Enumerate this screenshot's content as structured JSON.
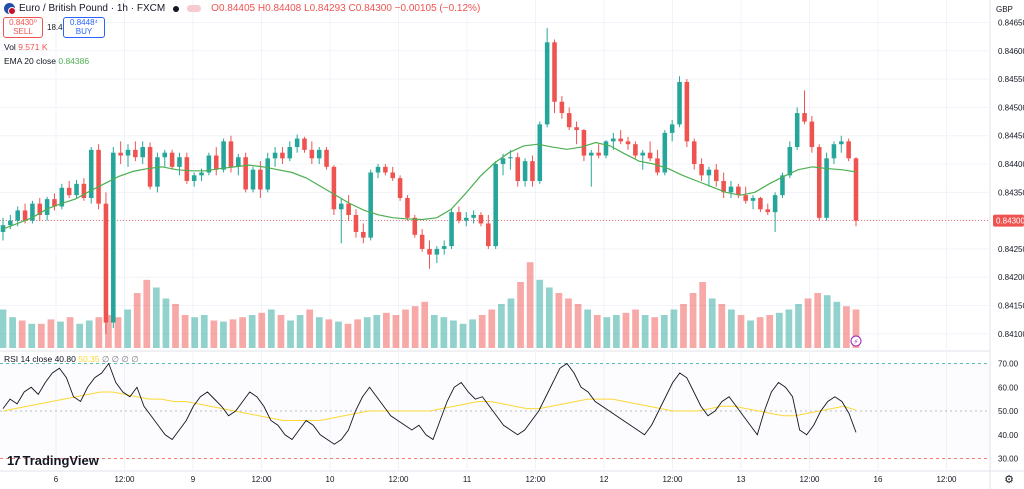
{
  "header": {
    "symbol": "Euro / British Pound · 1h · FXCM",
    "ohlc": "O0.84405 H0.84408 L0.84293 C0.84300 −0.00105 (−0.12%)"
  },
  "trade": {
    "sell_price": "0.8430⁰",
    "sell_label": "SELL",
    "spread": "18.4",
    "buy_price": "0.8448⁴",
    "buy_label": "BUY"
  },
  "indicators": {
    "vol_label": "Vol",
    "vol_value": "9.571 K",
    "ema_label": "EMA 20 close",
    "ema_value": "0.84386",
    "rsi_label": "RSI 14 close",
    "rsi_value": "40.80",
    "rsi_ma_value": "50.35",
    "rsi_zeros": "∅ ∅ ∅ ∅"
  },
  "currency": "GBP",
  "brand": {
    "logo": "17",
    "name": "TradingView"
  },
  "settings_icon": "gear-icon",
  "colors": {
    "up": "#26a69a",
    "down": "#ef5350",
    "ema": "#4caf50",
    "rsi": "#131722",
    "rsi_ma": "#fdd835",
    "last_price": "#ef5350"
  },
  "chart_data": {
    "type": "candlestick",
    "title": "Euro / British Pound · 1h · FXCM",
    "price_axis": {
      "label": "GBP",
      "ticks": [
        "0.84650",
        "0.84600",
        "0.84550",
        "0.84500",
        "0.84450",
        "0.84400",
        "0.84350",
        "0.84300",
        "0.84250",
        "0.84200",
        "0.84150",
        "0.84100"
      ],
      "range": [
        0.84075,
        0.84665
      ]
    },
    "last_price": "0.84300",
    "time_axis": {
      "ticks": [
        "6",
        "12:00",
        "9",
        "12:00",
        "10",
        "12:00",
        "11",
        "12:00",
        "12",
        "12:00",
        "13",
        "12:00",
        "16",
        "12:00"
      ]
    },
    "candles_ohlc": [
      [
        0.8428,
        0.84305,
        0.84265,
        0.84292
      ],
      [
        0.84292,
        0.8431,
        0.84285,
        0.843
      ],
      [
        0.843,
        0.84325,
        0.8429,
        0.84318
      ],
      [
        0.84318,
        0.8433,
        0.84295,
        0.843
      ],
      [
        0.843,
        0.84335,
        0.84295,
        0.8433
      ],
      [
        0.8433,
        0.8434,
        0.843,
        0.8431
      ],
      [
        0.8431,
        0.84342,
        0.843,
        0.84338
      ],
      [
        0.84338,
        0.84348,
        0.84318,
        0.84325
      ],
      [
        0.84325,
        0.84365,
        0.8432,
        0.84358
      ],
      [
        0.84358,
        0.8437,
        0.8434,
        0.84345
      ],
      [
        0.84345,
        0.84372,
        0.8434,
        0.84365
      ],
      [
        0.84365,
        0.84375,
        0.84335,
        0.8434
      ],
      [
        0.8434,
        0.8443,
        0.8433,
        0.84425
      ],
      [
        0.84425,
        0.84435,
        0.8432,
        0.8433
      ],
      [
        0.8433,
        0.8435,
        0.841,
        0.8412
      ],
      [
        0.8412,
        0.8443,
        0.8411,
        0.8442
      ],
      [
        0.8442,
        0.8444,
        0.844,
        0.84415
      ],
      [
        0.84415,
        0.84435,
        0.84395,
        0.84425
      ],
      [
        0.84425,
        0.8444,
        0.84405,
        0.84412
      ],
      [
        0.84412,
        0.8444,
        0.844,
        0.8443
      ],
      [
        0.8443,
        0.84438,
        0.84355,
        0.8436
      ],
      [
        0.8436,
        0.8442,
        0.8435,
        0.84412
      ],
      [
        0.84412,
        0.84425,
        0.84395,
        0.8442
      ],
      [
        0.8442,
        0.84425,
        0.8439,
        0.84395
      ],
      [
        0.84395,
        0.8442,
        0.8438,
        0.84412
      ],
      [
        0.84412,
        0.8442,
        0.84365,
        0.8437
      ],
      [
        0.8437,
        0.84385,
        0.8436,
        0.8438
      ],
      [
        0.8438,
        0.84392,
        0.8437,
        0.84385
      ],
      [
        0.84385,
        0.8442,
        0.8438,
        0.84415
      ],
      [
        0.84415,
        0.8443,
        0.8438,
        0.8439
      ],
      [
        0.8439,
        0.84445,
        0.84385,
        0.8444
      ],
      [
        0.8444,
        0.8445,
        0.84385,
        0.84395
      ],
      [
        0.84395,
        0.84418,
        0.8438,
        0.84412
      ],
      [
        0.84412,
        0.8442,
        0.8435,
        0.84355
      ],
      [
        0.84355,
        0.84395,
        0.8435,
        0.8439
      ],
      [
        0.8439,
        0.84405,
        0.8434,
        0.84355
      ],
      [
        0.84355,
        0.8442,
        0.8435,
        0.8441
      ],
      [
        0.8441,
        0.8443,
        0.84395,
        0.8442
      ],
      [
        0.8442,
        0.8443,
        0.844,
        0.8441
      ],
      [
        0.8441,
        0.8444,
        0.84405,
        0.8443
      ],
      [
        0.8443,
        0.84452,
        0.8442,
        0.84445
      ],
      [
        0.84445,
        0.84448,
        0.8442,
        0.84425
      ],
      [
        0.84425,
        0.8444,
        0.844,
        0.8441
      ],
      [
        0.8441,
        0.8443,
        0.844,
        0.84425
      ],
      [
        0.84425,
        0.8443,
        0.8439,
        0.84395
      ],
      [
        0.84395,
        0.84398,
        0.8431,
        0.8432
      ],
      [
        0.8432,
        0.8434,
        0.8426,
        0.8433
      ],
      [
        0.8433,
        0.84345,
        0.843,
        0.8431
      ],
      [
        0.8431,
        0.8432,
        0.8427,
        0.8428
      ],
      [
        0.8428,
        0.84295,
        0.8426,
        0.8427
      ],
      [
        0.8427,
        0.8439,
        0.84265,
        0.84385
      ],
      [
        0.84385,
        0.844,
        0.84375,
        0.84395
      ],
      [
        0.84395,
        0.844,
        0.8438,
        0.84385
      ],
      [
        0.84385,
        0.84395,
        0.8437,
        0.84375
      ],
      [
        0.84375,
        0.8438,
        0.84335,
        0.8434
      ],
      [
        0.8434,
        0.84345,
        0.843,
        0.84305
      ],
      [
        0.84305,
        0.8431,
        0.8427,
        0.84275
      ],
      [
        0.84275,
        0.84285,
        0.84245,
        0.8425
      ],
      [
        0.8425,
        0.84265,
        0.84215,
        0.8424
      ],
      [
        0.8424,
        0.84255,
        0.84225,
        0.8425
      ],
      [
        0.8425,
        0.84265,
        0.8424,
        0.84255
      ],
      [
        0.84255,
        0.8432,
        0.8425,
        0.84315
      ],
      [
        0.84315,
        0.84325,
        0.84295,
        0.843
      ],
      [
        0.843,
        0.84315,
        0.8429,
        0.84305
      ],
      [
        0.84305,
        0.84318,
        0.84295,
        0.8431
      ],
      [
        0.8431,
        0.84315,
        0.8429,
        0.84295
      ],
      [
        0.84295,
        0.8431,
        0.8425,
        0.84255
      ],
      [
        0.84255,
        0.84405,
        0.8425,
        0.844
      ],
      [
        0.844,
        0.84418,
        0.8438,
        0.8441
      ],
      [
        0.8441,
        0.84425,
        0.8439,
        0.84412
      ],
      [
        0.84412,
        0.8442,
        0.8436,
        0.8437
      ],
      [
        0.8437,
        0.8441,
        0.8436,
        0.84405
      ],
      [
        0.84405,
        0.84415,
        0.8436,
        0.8437
      ],
      [
        0.8437,
        0.84475,
        0.84365,
        0.8447
      ],
      [
        0.8447,
        0.8464,
        0.84465,
        0.84615
      ],
      [
        0.84615,
        0.8462,
        0.8449,
        0.8451
      ],
      [
        0.8451,
        0.8452,
        0.8448,
        0.8449
      ],
      [
        0.8449,
        0.845,
        0.8446,
        0.84465
      ],
      [
        0.84465,
        0.84475,
        0.84435,
        0.8446
      ],
      [
        0.8446,
        0.84462,
        0.84405,
        0.84415
      ],
      [
        0.84415,
        0.84425,
        0.8436,
        0.8442
      ],
      [
        0.8442,
        0.84435,
        0.8441,
        0.84415
      ],
      [
        0.84415,
        0.84442,
        0.8441,
        0.8444
      ],
      [
        0.8444,
        0.84455,
        0.84425,
        0.84445
      ],
      [
        0.84445,
        0.8446,
        0.84435,
        0.8444
      ],
      [
        0.8444,
        0.84448,
        0.84425,
        0.84435
      ],
      [
        0.84435,
        0.8444,
        0.8441,
        0.84415
      ],
      [
        0.84415,
        0.84425,
        0.8439,
        0.8442
      ],
      [
        0.8442,
        0.8444,
        0.84405,
        0.8441
      ],
      [
        0.8441,
        0.84425,
        0.8438,
        0.84385
      ],
      [
        0.84385,
        0.8446,
        0.8438,
        0.84455
      ],
      [
        0.84455,
        0.84478,
        0.8444,
        0.8447
      ],
      [
        0.8447,
        0.84555,
        0.84465,
        0.84545
      ],
      [
        0.84545,
        0.8455,
        0.8443,
        0.8444
      ],
      [
        0.8444,
        0.84445,
        0.8439,
        0.844
      ],
      [
        0.844,
        0.8441,
        0.8437,
        0.8438
      ],
      [
        0.8438,
        0.84395,
        0.8436,
        0.8439
      ],
      [
        0.8439,
        0.844,
        0.8436,
        0.8437
      ],
      [
        0.8437,
        0.84385,
        0.8434,
        0.8435
      ],
      [
        0.8435,
        0.8437,
        0.8434,
        0.8436
      ],
      [
        0.8436,
        0.84365,
        0.8434,
        0.84345
      ],
      [
        0.84345,
        0.8436,
        0.8433,
        0.84335
      ],
      [
        0.84335,
        0.84345,
        0.8432,
        0.8434
      ],
      [
        0.8434,
        0.84342,
        0.84315,
        0.8432
      ],
      [
        0.8432,
        0.8433,
        0.8431,
        0.84315
      ],
      [
        0.84315,
        0.8435,
        0.8428,
        0.84345
      ],
      [
        0.84345,
        0.84385,
        0.8434,
        0.8438
      ],
      [
        0.8438,
        0.8444,
        0.84375,
        0.8443
      ],
      [
        0.8443,
        0.845,
        0.84425,
        0.8449
      ],
      [
        0.8449,
        0.8453,
        0.8447,
        0.84475
      ],
      [
        0.84475,
        0.84485,
        0.8442,
        0.8443
      ],
      [
        0.8443,
        0.84435,
        0.843,
        0.84305
      ],
      [
        0.84305,
        0.8442,
        0.843,
        0.8441
      ],
      [
        0.8441,
        0.8444,
        0.844,
        0.84435
      ],
      [
        0.84435,
        0.8445,
        0.8442,
        0.8444
      ],
      [
        0.8444,
        0.84445,
        0.84405,
        0.8441
      ],
      [
        0.8441,
        0.84412,
        0.8429,
        0.843
      ]
    ],
    "ema20": [
      0.84285,
      0.84295,
      0.84305,
      0.8432,
      0.8433,
      0.84338,
      0.84352,
      0.84365,
      0.84378,
      0.84387,
      0.84392,
      0.84395,
      0.8439,
      0.84388,
      0.84388,
      0.84392,
      0.84395,
      0.84398,
      0.84395,
      0.8439,
      0.84385,
      0.84375,
      0.8436,
      0.84345,
      0.8433,
      0.84318,
      0.8431,
      0.84305,
      0.84303,
      0.84302,
      0.84305,
      0.8432,
      0.84348,
      0.84378,
      0.84402,
      0.8442,
      0.84432,
      0.84435,
      0.8443,
      0.84426,
      0.8443,
      0.84438,
      0.84432,
      0.84418,
      0.84405,
      0.844,
      0.84392,
      0.8438,
      0.8437,
      0.8436,
      0.8435,
      0.84345,
      0.8435,
      0.84365,
      0.84378,
      0.8439,
      0.84395,
      0.84392,
      0.8439,
      0.84386
    ],
    "volume": [
      0.35,
      0.28,
      0.25,
      0.22,
      0.22,
      0.26,
      0.24,
      0.28,
      0.22,
      0.25,
      0.28,
      0.3,
      0.28,
      0.35,
      0.5,
      0.62,
      0.55,
      0.45,
      0.4,
      0.3,
      0.28,
      0.3,
      0.25,
      0.24,
      0.26,
      0.28,
      0.3,
      0.32,
      0.35,
      0.3,
      0.25,
      0.3,
      0.35,
      0.28,
      0.26,
      0.24,
      0.22,
      0.26,
      0.28,
      0.3,
      0.32,
      0.3,
      0.35,
      0.38,
      0.42,
      0.3,
      0.28,
      0.25,
      0.22,
      0.26,
      0.3,
      0.35,
      0.4,
      0.45,
      0.6,
      0.78,
      0.62,
      0.55,
      0.5,
      0.45,
      0.4,
      0.35,
      0.3,
      0.28,
      0.3,
      0.32,
      0.35,
      0.3,
      0.28,
      0.3,
      0.35,
      0.4,
      0.5,
      0.6,
      0.45,
      0.4,
      0.35,
      0.3,
      0.25,
      0.28,
      0.3,
      0.32,
      0.35,
      0.4,
      0.45,
      0.5,
      0.48,
      0.42,
      0.38,
      0.35
    ],
    "rsi": [
      51,
      55,
      53,
      58,
      60,
      57,
      62,
      66,
      68,
      64,
      56,
      54,
      60,
      64,
      66,
      70,
      62,
      58,
      56,
      60,
      52,
      48,
      44,
      40,
      38,
      42,
      46,
      52,
      56,
      58,
      55,
      52,
      48,
      50,
      54,
      58,
      56,
      52,
      46,
      44,
      40,
      38,
      42,
      46,
      44,
      40,
      38,
      36,
      38,
      42,
      50,
      56,
      60,
      56,
      52,
      48,
      46,
      44,
      42,
      44,
      40,
      38,
      46,
      54,
      60,
      62,
      58,
      55,
      56,
      52,
      48,
      44,
      42,
      40,
      42,
      46,
      50,
      56,
      62,
      68,
      70,
      66,
      60,
      58,
      54,
      52,
      50,
      48,
      46,
      44,
      42,
      40,
      44,
      50,
      56,
      62,
      66,
      64,
      58,
      52,
      48,
      50,
      54,
      56,
      52,
      48,
      44,
      40,
      50,
      58,
      62,
      60,
      56,
      42,
      40,
      44,
      50,
      54,
      56,
      54,
      49,
      41
    ],
    "rsi_ma": [
      50,
      51,
      52,
      53,
      54,
      55,
      56,
      57,
      58,
      58,
      57,
      56,
      55,
      55,
      54,
      54,
      53,
      52,
      51,
      50,
      49,
      48,
      47,
      46,
      46,
      46,
      46,
      47,
      48,
      49,
      50,
      50,
      50,
      50,
      50,
      50,
      51,
      52,
      53,
      54,
      54,
      53,
      52,
      51,
      51,
      52,
      53,
      54,
      55,
      55,
      55,
      54,
      53,
      52,
      51,
      50,
      50,
      50,
      51,
      52,
      52,
      51,
      50,
      49,
      48,
      48,
      49,
      50,
      51,
      52,
      50.35
    ],
    "rsi_axis": {
      "ticks": [
        "70.00",
        "60.00",
        "50.00",
        "40.00",
        "30.00"
      ],
      "range": [
        26,
        74
      ]
    }
  }
}
